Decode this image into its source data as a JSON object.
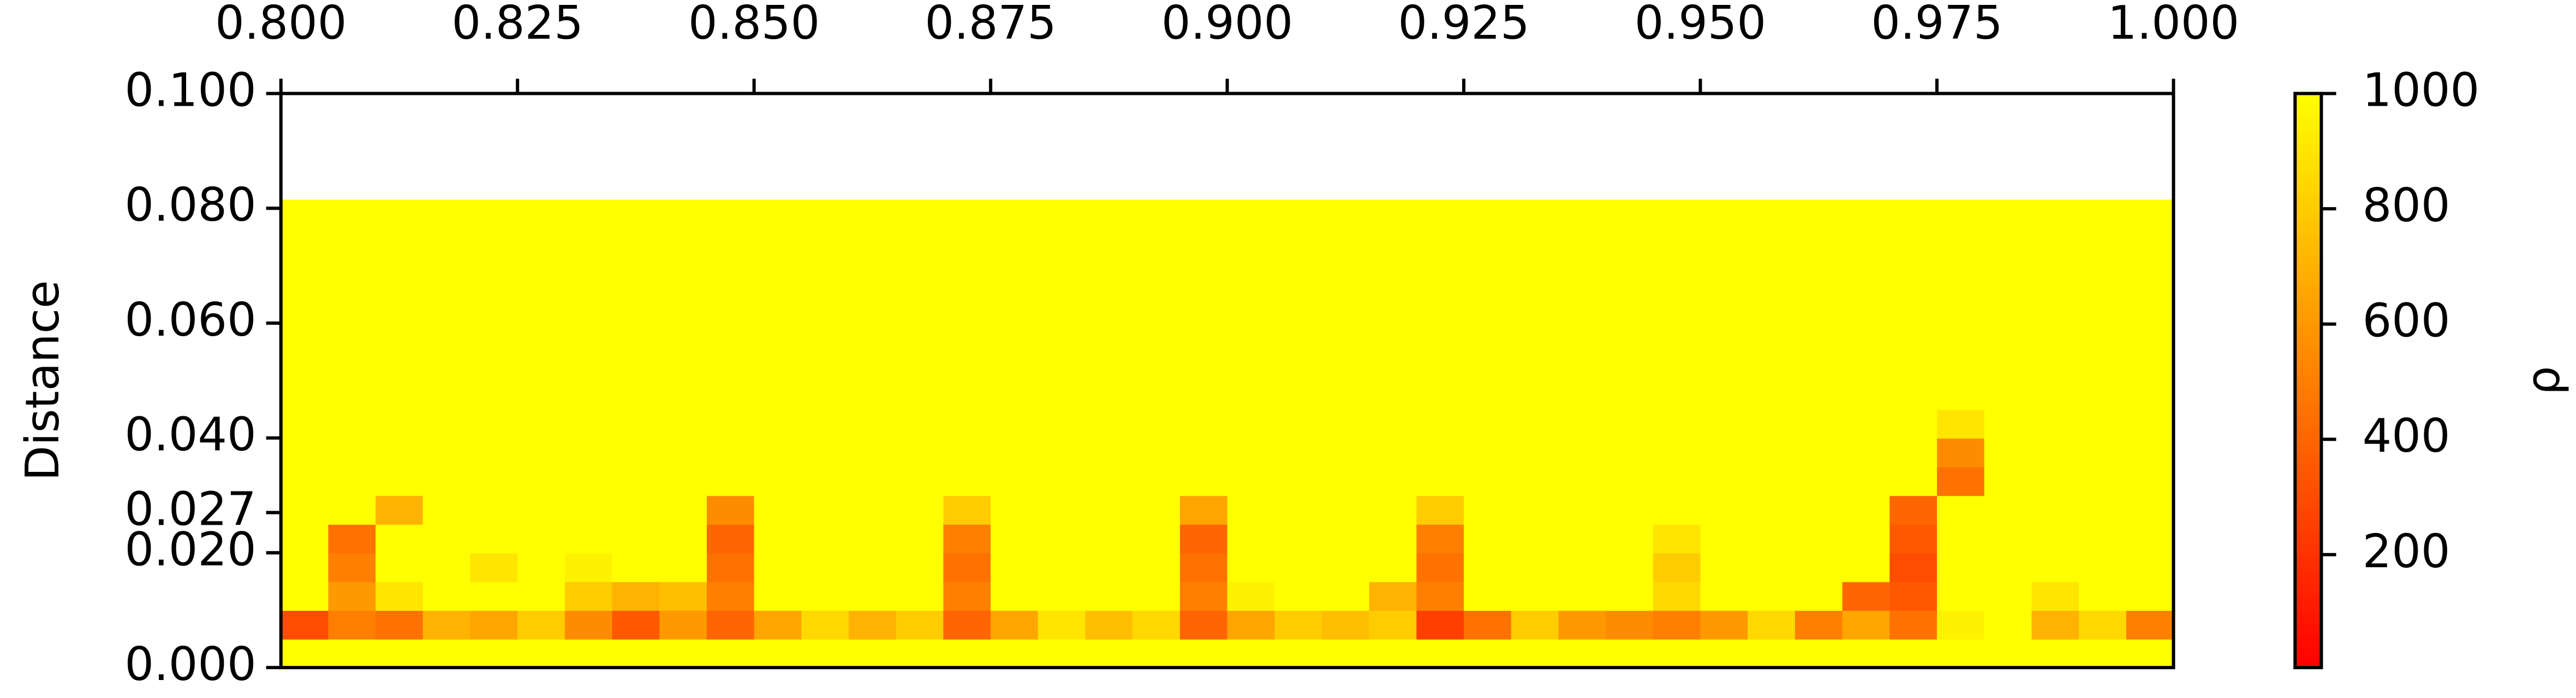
{
  "chart_data": {
    "type": "heatmap",
    "y_label": "Distance",
    "colorbar_label": "ρ",
    "colormap": [
      "#ff0000",
      "#ffff00"
    ],
    "clim": [
      4,
      1000
    ],
    "cticks": [
      200,
      400,
      600,
      800,
      1000
    ],
    "xlim": [
      0.8,
      1.0
    ],
    "xticks": [
      {
        "value": 0.8,
        "label": "0.800"
      },
      {
        "value": 0.825,
        "label": "0.825"
      },
      {
        "value": 0.85,
        "label": "0.850"
      },
      {
        "value": 0.875,
        "label": "0.875"
      },
      {
        "value": 0.9,
        "label": "0.900"
      },
      {
        "value": 0.925,
        "label": "0.925"
      },
      {
        "value": 0.95,
        "label": "0.950"
      },
      {
        "value": 0.975,
        "label": "0.975"
      },
      {
        "value": 1.0,
        "label": "1.000"
      }
    ],
    "ylim": [
      0,
      0.1
    ],
    "yticks": [
      {
        "value": 0,
        "label": "0.000"
      },
      {
        "value": 0.02,
        "label": "0.020"
      },
      {
        "value": 0.027,
        "label": "0.027"
      },
      {
        "value": 0.04,
        "label": "0.040"
      },
      {
        "value": 0.06,
        "label": "0.060"
      },
      {
        "value": 0.08,
        "label": "0.080"
      },
      {
        "value": 0.1,
        "label": "0.100"
      }
    ],
    "x_edges": [
      0.8,
      0.805,
      0.81,
      0.815,
      0.82,
      0.825,
      0.83,
      0.835,
      0.84,
      0.845,
      0.85,
      0.855,
      0.86,
      0.865,
      0.87,
      0.875,
      0.88,
      0.885,
      0.89,
      0.895,
      0.9,
      0.905,
      0.91,
      0.915,
      0.92,
      0.925,
      0.93,
      0.935,
      0.94,
      0.945,
      0.95,
      0.955,
      0.96,
      0.965,
      0.97,
      0.975,
      0.98,
      0.985,
      0.99,
      0.995,
      1.0
    ],
    "y_edges": [
      0,
      0.005,
      0.01,
      0.015,
      0.02,
      0.025,
      0.03,
      0.035,
      0.04,
      0.045,
      0.0815
    ],
    "z": [
      [
        1000,
        1000,
        1000,
        1000,
        1000,
        1000,
        1000,
        1000,
        1000,
        1000,
        1000,
        1000,
        1000,
        1000,
        1000,
        1000,
        1000,
        1000,
        1000,
        1000,
        1000,
        1000,
        1000,
        1000,
        1000,
        1000,
        1000,
        1000,
        1000,
        1000,
        1000,
        1000,
        1000,
        1000,
        1000,
        1000,
        1000,
        1000,
        1000,
        1000
      ],
      [
        300,
        500,
        450,
        700,
        650,
        800,
        550,
        350,
        600,
        400,
        650,
        850,
        700,
        800,
        400,
        650,
        900,
        750,
        850,
        400,
        650,
        800,
        750,
        800,
        250,
        450,
        800,
        600,
        550,
        500,
        600,
        850,
        500,
        650,
        450,
        950,
        1000,
        700,
        850,
        500
      ],
      [
        1000,
        600,
        900,
        1000,
        1000,
        1000,
        800,
        700,
        750,
        500,
        1000,
        1000,
        1000,
        1000,
        500,
        1000,
        1000,
        1000,
        1000,
        500,
        950,
        1000,
        1000,
        700,
        500,
        1000,
        1000,
        1000,
        1000,
        850,
        1000,
        1000,
        1000,
        400,
        350,
        1000,
        1000,
        900,
        1000,
        1000
      ],
      [
        1000,
        500,
        1000,
        1000,
        900,
        1000,
        950,
        1000,
        1000,
        450,
        1000,
        1000,
        1000,
        1000,
        450,
        1000,
        1000,
        1000,
        1000,
        450,
        1000,
        1000,
        1000,
        1000,
        450,
        1000,
        1000,
        1000,
        1000,
        800,
        1000,
        1000,
        1000,
        1000,
        300,
        1000,
        1000,
        1000,
        1000,
        1000
      ],
      [
        1000,
        450,
        1000,
        1000,
        1000,
        1000,
        1000,
        1000,
        1000,
        400,
        1000,
        1000,
        1000,
        1000,
        500,
        1000,
        1000,
        1000,
        1000,
        400,
        1000,
        1000,
        1000,
        1000,
        500,
        1000,
        1000,
        1000,
        1000,
        900,
        1000,
        1000,
        1000,
        1000,
        350,
        1000,
        1000,
        1000,
        1000,
        1000
      ],
      [
        1000,
        1000,
        700,
        1000,
        1000,
        1000,
        1000,
        1000,
        1000,
        550,
        1000,
        1000,
        1000,
        1000,
        800,
        1000,
        1000,
        1000,
        1000,
        650,
        1000,
        1000,
        1000,
        1000,
        800,
        1000,
        1000,
        1000,
        1000,
        1000,
        1000,
        1000,
        1000,
        1000,
        400,
        1000,
        1000,
        1000,
        1000,
        1000
      ],
      [
        1000,
        1000,
        1000,
        1000,
        1000,
        1000,
        1000,
        1000,
        1000,
        1000,
        1000,
        1000,
        1000,
        1000,
        1000,
        1000,
        1000,
        1000,
        1000,
        1000,
        1000,
        1000,
        1000,
        1000,
        1000,
        1000,
        1000,
        1000,
        1000,
        1000,
        1000,
        1000,
        1000,
        1000,
        1000,
        450,
        1000,
        1000,
        1000,
        1000
      ],
      [
        1000,
        1000,
        1000,
        1000,
        1000,
        1000,
        1000,
        1000,
        1000,
        1000,
        1000,
        1000,
        1000,
        1000,
        1000,
        1000,
        1000,
        1000,
        1000,
        1000,
        1000,
        1000,
        1000,
        1000,
        1000,
        1000,
        1000,
        1000,
        1000,
        1000,
        1000,
        1000,
        1000,
        1000,
        1000,
        550,
        1000,
        1000,
        1000,
        1000
      ],
      [
        1000,
        1000,
        1000,
        1000,
        1000,
        1000,
        1000,
        1000,
        1000,
        1000,
        1000,
        1000,
        1000,
        1000,
        1000,
        1000,
        1000,
        1000,
        1000,
        1000,
        1000,
        1000,
        1000,
        1000,
        1000,
        1000,
        1000,
        1000,
        1000,
        1000,
        1000,
        1000,
        1000,
        1000,
        1000,
        900,
        1000,
        1000,
        1000,
        1000
      ],
      [
        1000,
        1000,
        1000,
        1000,
        1000,
        1000,
        1000,
        1000,
        1000,
        1000,
        1000,
        1000,
        1000,
        1000,
        1000,
        1000,
        1000,
        1000,
        1000,
        1000,
        1000,
        1000,
        1000,
        1000,
        1000,
        1000,
        1000,
        1000,
        1000,
        1000,
        1000,
        1000,
        1000,
        1000,
        1000,
        1000,
        1000,
        1000,
        1000,
        1000
      ]
    ]
  }
}
